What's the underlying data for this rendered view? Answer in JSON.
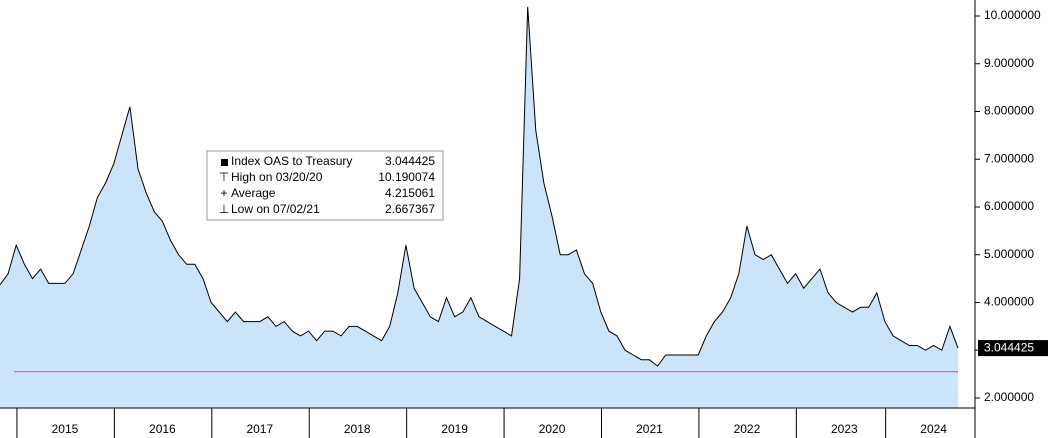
{
  "chart_data": {
    "type": "area",
    "categories": [
      null,
      null,
      null,
      null,
      null,
      null,
      null,
      null,
      "2015",
      null,
      null,
      null,
      null,
      null,
      null,
      null,
      null,
      null,
      null,
      null,
      "2016",
      null,
      null,
      null,
      null,
      null,
      null,
      null,
      null,
      null,
      null,
      null,
      "2017",
      null,
      null,
      null,
      null,
      null,
      null,
      null,
      null,
      null,
      null,
      null,
      "2018",
      null,
      null,
      null,
      null,
      null,
      null,
      null,
      null,
      null,
      null,
      null,
      "2019",
      null,
      null,
      null,
      null,
      null,
      null,
      null,
      null,
      null,
      null,
      null,
      "2020",
      null,
      null,
      null,
      null,
      null,
      null,
      null,
      null,
      null,
      null,
      null,
      "2021",
      null,
      null,
      null,
      null,
      null,
      null,
      null,
      null,
      null,
      null,
      null,
      "2022",
      null,
      null,
      null,
      null,
      null,
      null,
      null,
      null,
      null,
      null,
      null,
      "2023",
      null,
      null,
      null,
      null,
      null,
      null,
      null,
      null,
      null,
      null,
      "2024",
      null,
      null,
      null
    ],
    "series": [
      {
        "name": "Index OAS to Treasury",
        "color": "#000000",
        "fill": "#cce4fa",
        "values": [
          4.37,
          4.6,
          5.2,
          4.8,
          4.5,
          4.7,
          4.4,
          4.4,
          4.4,
          4.6,
          5.1,
          5.6,
          6.2,
          6.5,
          6.9,
          7.5,
          8.1,
          6.8,
          6.3,
          5.9,
          5.7,
          5.3,
          5.0,
          4.8,
          4.8,
          4.5,
          4.0,
          3.8,
          3.6,
          3.8,
          3.6,
          3.6,
          3.6,
          3.7,
          3.5,
          3.6,
          3.4,
          3.3,
          3.4,
          3.2,
          3.4,
          3.4,
          3.3,
          3.5,
          3.5,
          3.4,
          3.3,
          3.2,
          3.5,
          4.2,
          5.2,
          4.3,
          4.0,
          3.7,
          3.6,
          4.1,
          3.7,
          3.8,
          4.1,
          3.7,
          3.6,
          3.5,
          3.4,
          3.3,
          4.5,
          10.190074,
          7.6,
          6.5,
          5.8,
          5.0,
          5.0,
          5.1,
          4.6,
          4.4,
          3.8,
          3.4,
          3.3,
          3.0,
          2.9,
          2.8,
          2.8,
          2.667367,
          2.9,
          2.9,
          2.9,
          2.9,
          2.9,
          3.3,
          3.6,
          3.8,
          4.1,
          4.6,
          5.6,
          5.0,
          4.9,
          5.0,
          4.7,
          4.4,
          4.6,
          4.3,
          4.5,
          4.7,
          4.2,
          4.0,
          3.9,
          3.8,
          3.9,
          3.9,
          4.2,
          3.6,
          3.3,
          3.2,
          3.1,
          3.1,
          3.0,
          3.1,
          3.0,
          3.5,
          3.044425
        ]
      }
    ],
    "ylim": [
      1.79,
      10.335
    ],
    "yticks": [
      {
        "value": 2,
        "label": "2.000000"
      },
      {
        "value": 3,
        "label": "3.000000"
      },
      {
        "value": 4,
        "label": "4.000000"
      },
      {
        "value": 5,
        "label": "5.000000"
      },
      {
        "value": 6,
        "label": "6.000000"
      },
      {
        "value": 7,
        "label": "7.000000"
      },
      {
        "value": 8,
        "label": "8.000000"
      },
      {
        "value": 9,
        "label": "9.000000"
      },
      {
        "value": 10,
        "label": "10.000000"
      }
    ],
    "reference_line": {
      "value": 2.55,
      "color": "#e06666"
    },
    "last_value": 3.044425,
    "legend": {
      "items": [
        {
          "label": "Index OAS to Treasury",
          "value": 3.044425
        },
        {
          "label": "High on 03/20/20",
          "value": 10.190074
        },
        {
          "label": "Average",
          "value": 4.215061
        },
        {
          "label": "Low on 07/02/21",
          "value": 2.667367
        }
      ]
    }
  }
}
